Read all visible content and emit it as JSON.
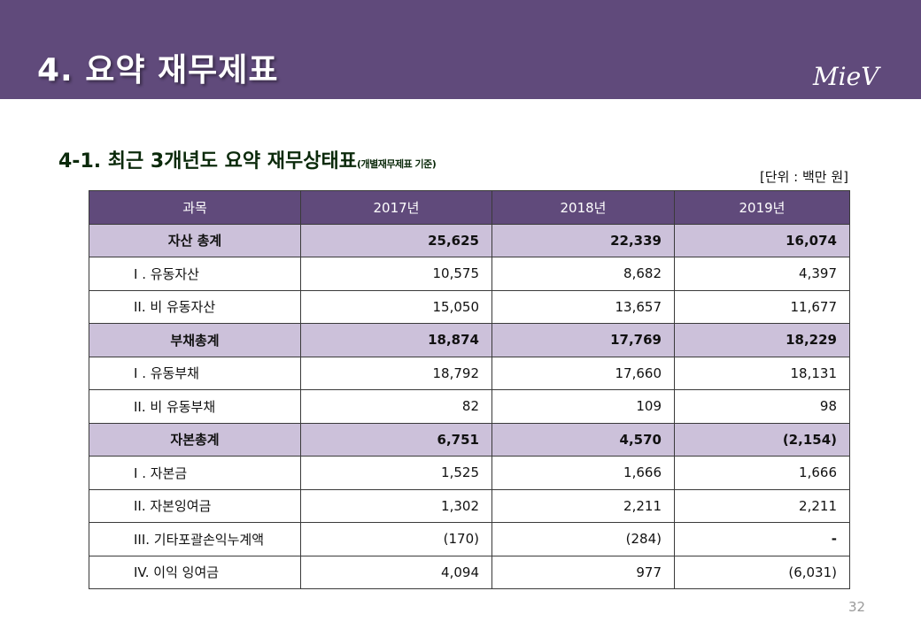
{
  "header": {
    "title": "4. 요약 재무제표",
    "logo": "MieV"
  },
  "section": {
    "title": "4-1. 최근 3개년도 요약 재무상태표",
    "subtitle": "(개별재무제표 기준)",
    "unit": "[단위 : 백만 원]"
  },
  "table": {
    "headers": [
      "과목",
      "2017년",
      "2018년",
      "2019년"
    ],
    "rows": [
      {
        "label": "자산 총계",
        "total": true,
        "values": [
          "25,625",
          "22,339",
          "16,074"
        ]
      },
      {
        "label": "I . 유동자산",
        "total": false,
        "values": [
          "10,575",
          "8,682",
          "4,397"
        ]
      },
      {
        "label": "II. 비 유동자산",
        "total": false,
        "values": [
          "15,050",
          "13,657",
          "11,677"
        ]
      },
      {
        "label": "부채총계",
        "total": true,
        "values": [
          "18,874",
          "17,769",
          "18,229"
        ]
      },
      {
        "label": "I . 유동부채",
        "total": false,
        "values": [
          "18,792",
          "17,660",
          "18,131"
        ]
      },
      {
        "label": "II. 비 유동부채",
        "total": false,
        "values": [
          "82",
          "109",
          "98"
        ]
      },
      {
        "label": "자본총계",
        "total": true,
        "values": [
          "6,751",
          "4,570",
          "(2,154)"
        ]
      },
      {
        "label": "I . 자본금",
        "total": false,
        "values": [
          "1,525",
          "1,666",
          "1,666"
        ]
      },
      {
        "label": "II. 자본잉여금",
        "total": false,
        "values": [
          "1,302",
          "2,211",
          "2,211"
        ]
      },
      {
        "label": "III. 기타포괄손익누계액",
        "total": false,
        "values": [
          "(170)",
          "(284)",
          "-"
        ]
      },
      {
        "label": "IV. 이익 잉여금",
        "total": false,
        "values": [
          "4,094",
          "977",
          "(6,031)"
        ]
      }
    ]
  },
  "footer": {
    "page_number": "32"
  },
  "colors": {
    "header_purple": "#604a7b",
    "total_row_lavender": "#ccc1da"
  }
}
